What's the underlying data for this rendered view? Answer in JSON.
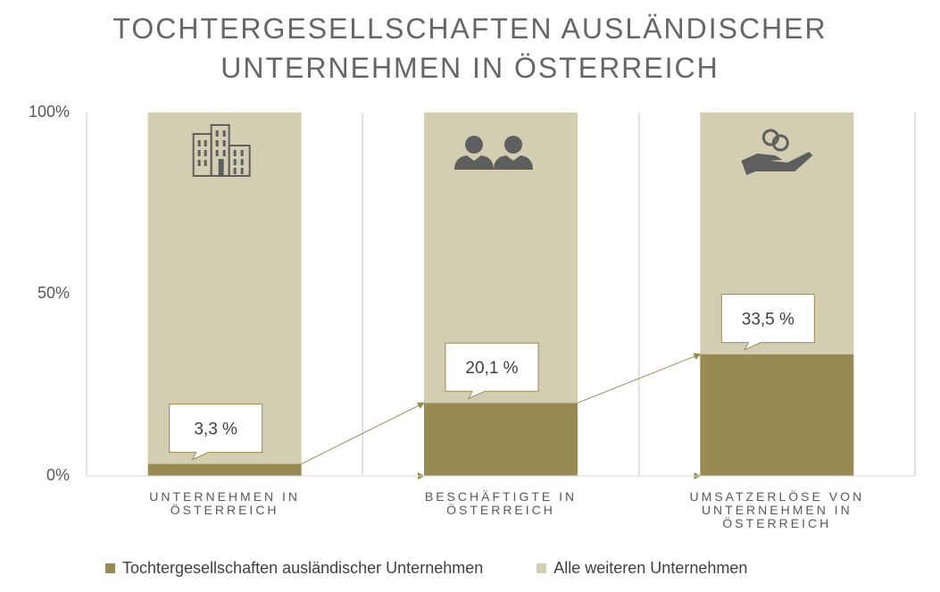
{
  "chart_data": {
    "type": "bar",
    "stacked": true,
    "title": "TOCHTERGESELLSCHAFTEN AUSLÄNDISCHER UNTERNEHMEN IN ÖSTERREICH",
    "title_lines": [
      "TOCHTERGESELLSCHAFTEN AUSLÄNDISCHER",
      "UNTERNEHMEN IN ÖSTERREICH"
    ],
    "categories": [
      [
        "UNTERNEHMEN IN",
        "ÖSTERREICH"
      ],
      [
        "BESCHÄFTIGTE IN",
        "ÖSTERREICH"
      ],
      [
        "UMSATZERLÖSE VON",
        "UNTERNEHMEN IN",
        "ÖSTERREICH"
      ]
    ],
    "category_icons": [
      "buildings-icon",
      "people-icon",
      "money-hand-icon"
    ],
    "series": [
      {
        "name": "Tochtergesellschaften ausländischer Unternehmen",
        "values": [
          3.3,
          20.1,
          33.5
        ],
        "color": "#978a53"
      },
      {
        "name": "Alle weiteren Unternehmen",
        "values": [
          96.7,
          79.9,
          66.5
        ],
        "color": "#d3cdb1"
      }
    ],
    "data_labels": [
      "3,3 %",
      "20,1 %",
      "33,5 %"
    ],
    "yticks": [
      {
        "value": 0,
        "label": "0%"
      },
      {
        "value": 50,
        "label": "50%"
      },
      {
        "value": 100,
        "label": "100%"
      }
    ],
    "ylim": [
      0,
      100
    ],
    "grid": "vertical",
    "legend": "bottom"
  }
}
